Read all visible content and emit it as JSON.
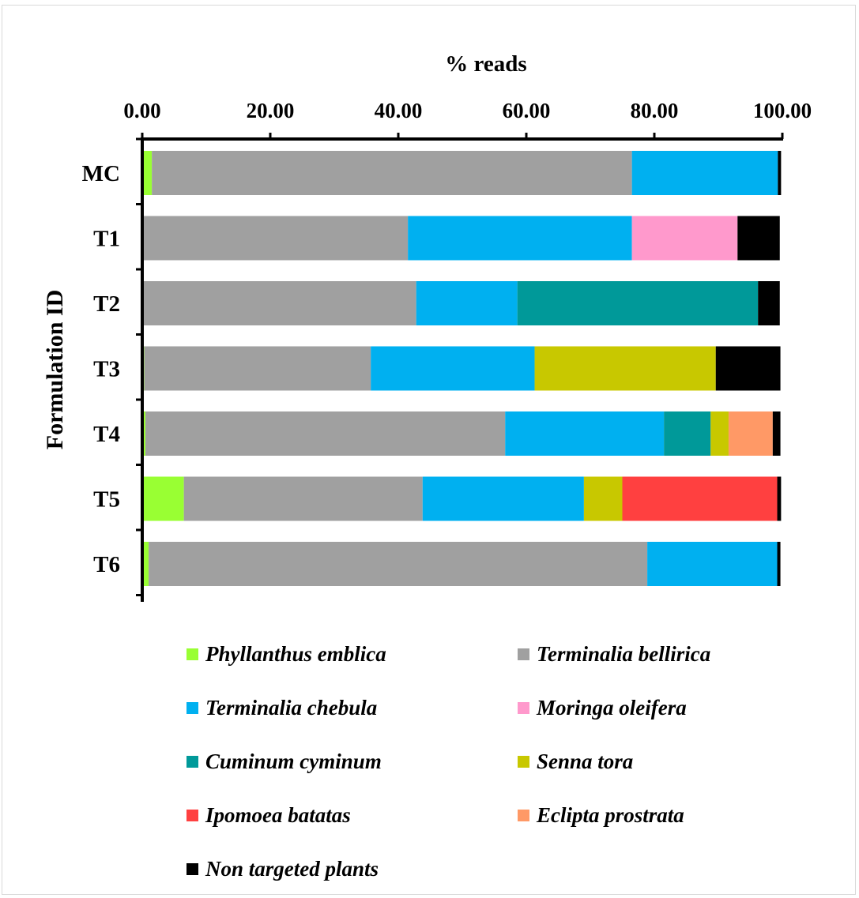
{
  "chart_data": {
    "type": "bar",
    "orientation": "horizontal",
    "stacked": true,
    "title": "% reads",
    "ylabel": "Formulation ID",
    "xlim": [
      0,
      100
    ],
    "x_ticks": [
      "0.00",
      "20.00",
      "40.00",
      "60.00",
      "80.00",
      "100.00"
    ],
    "x_tick_values": [
      0,
      20,
      40,
      60,
      80,
      100
    ],
    "x_axis_position": "top",
    "grid": false,
    "legend_position": "bottom",
    "categories": [
      "MC",
      "T1",
      "T2",
      "T3",
      "T4",
      "T5",
      "T6"
    ],
    "series": [
      {
        "name": "Phyllanthus emblica",
        "color": "#99ff33",
        "values": [
          1.5,
          0,
          0,
          0.3,
          0.5,
          6.5,
          1.0
        ]
      },
      {
        "name": "Terminalia bellirica",
        "color": "#a0a0a0",
        "values": [
          75.0,
          41.5,
          42.8,
          35.4,
          56.2,
          37.3,
          77.9
        ]
      },
      {
        "name": "Terminalia chebula",
        "color": "#00b0f0",
        "values": [
          22.8,
          35.0,
          15.8,
          25.6,
          24.8,
          25.2,
          20.3
        ]
      },
      {
        "name": "Moringa oleifera",
        "color": "#ff99cc",
        "values": [
          0,
          16.5,
          0,
          0,
          0,
          0,
          0
        ]
      },
      {
        "name": "Cuminum cyminum",
        "color": "#009999",
        "values": [
          0,
          0,
          37.6,
          0,
          7.3,
          0,
          0
        ]
      },
      {
        "name": "Senna tora",
        "color": "#c8c800",
        "values": [
          0,
          0,
          0,
          28.3,
          2.8,
          6.0,
          0
        ]
      },
      {
        "name": "Ipomoea batatas",
        "color": "#ff4040",
        "values": [
          0,
          0,
          0,
          0,
          0,
          24.2,
          0
        ]
      },
      {
        "name": "Eclipta prostrata",
        "color": "#ff9966",
        "values": [
          0,
          0,
          0,
          0,
          6.9,
          0,
          0
        ]
      },
      {
        "name": "Non targeted plants",
        "color": "#000000",
        "values": [
          0.5,
          6.6,
          3.4,
          10.1,
          1.2,
          0.6,
          0.5
        ]
      }
    ]
  }
}
